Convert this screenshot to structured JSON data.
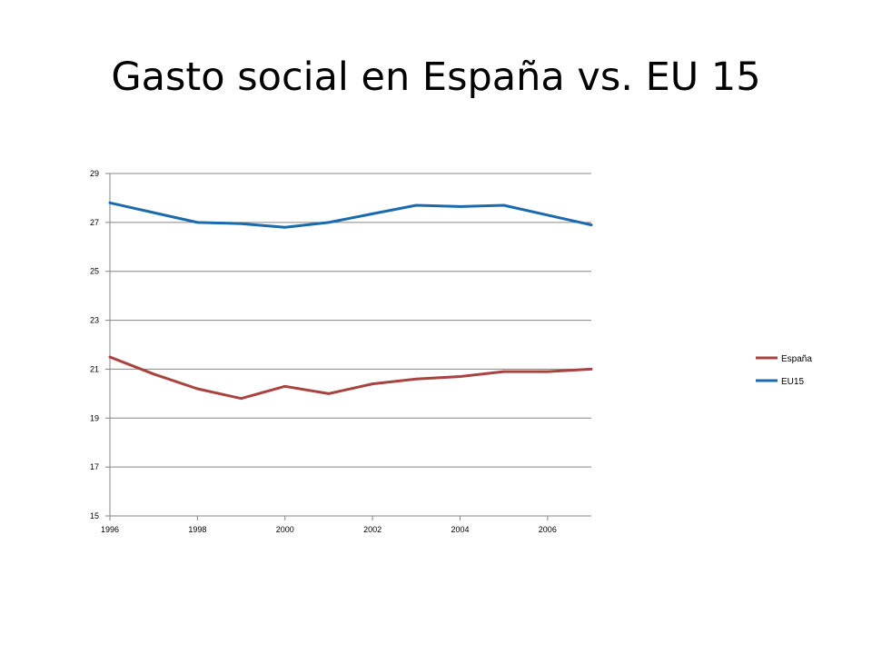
{
  "slide": {
    "title": "Gasto social en España vs. EU 15"
  },
  "chart_data": {
    "type": "line",
    "x": [
      1996,
      1997,
      1998,
      1999,
      2000,
      2001,
      2002,
      2003,
      2004,
      2005,
      2006,
      2007
    ],
    "x_ticks": [
      1996,
      1998,
      2000,
      2002,
      2004,
      2006
    ],
    "xlim": [
      1996,
      2007
    ],
    "ylim": [
      15,
      29
    ],
    "y_ticks": [
      15,
      17,
      19,
      21,
      23,
      25,
      27,
      29
    ],
    "grid": true,
    "legend": "right",
    "series": [
      {
        "name": "España",
        "color": "#a84340",
        "values": [
          21.5,
          20.8,
          20.2,
          19.8,
          20.3,
          20.0,
          20.4,
          20.6,
          20.7,
          20.9,
          20.9,
          21.0
        ]
      },
      {
        "name": "EU15",
        "color": "#1a6aad",
        "values": [
          27.8,
          27.4,
          27.0,
          26.95,
          26.8,
          27.0,
          27.35,
          27.7,
          27.65,
          27.7,
          27.3,
          26.9
        ]
      }
    ]
  }
}
